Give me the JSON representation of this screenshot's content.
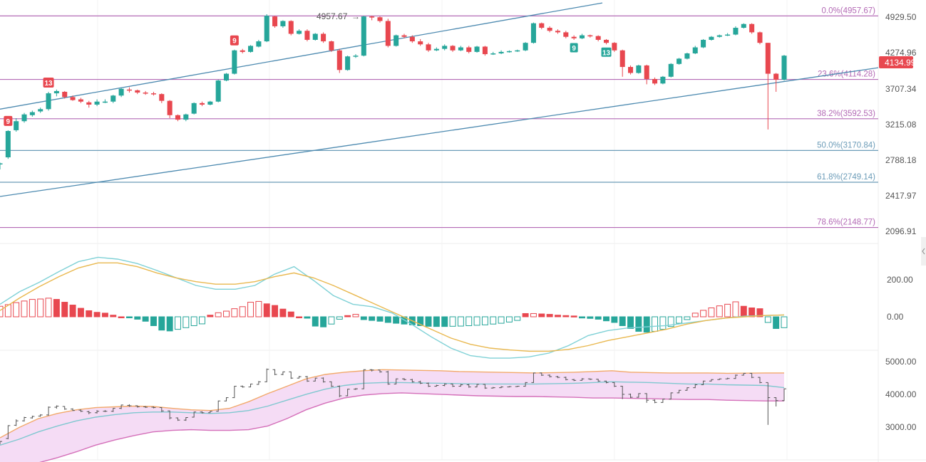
{
  "colors": {
    "up": "#26a69a",
    "down": "#e8474f",
    "fib_purple": "#b36ab5",
    "fib_blue": "#6c9cb8",
    "channel": "#4d8ab0",
    "dif": "#7fd1d6",
    "dea": "#e9b84f",
    "boll_upper": "#f2a96b",
    "boll_mid": "#7fc8d0",
    "boll_lower": "#d46fb9",
    "boll_fill": "#f5dcf5",
    "price_tag_bg": "#e8474f"
  },
  "price_axis": {
    "ticks": [
      "4929.50",
      "4274.96",
      "3707.34",
      "3215.08",
      "2788.18",
      "2417.97",
      "2096.91"
    ]
  },
  "macd_axis": {
    "ticks": [
      "200.00",
      "0.00"
    ]
  },
  "boll_axis": {
    "ticks": [
      "5000.00",
      "4000.00",
      "3000.00"
    ]
  },
  "last_price": "4134.99",
  "high_marker": {
    "label": "4957.67",
    "arrow": "→"
  },
  "fib_levels": [
    {
      "label": "0.0%(4957.67)",
      "price": 4957.67
    },
    {
      "label": "23.6%(4114.28)",
      "price": 4114.28
    },
    {
      "label": "38.2%(3592.53)",
      "price": 3592.53
    },
    {
      "label": "50.0%(3170.84)",
      "price": 3170.84
    },
    {
      "label": "61.8%(2749.14)",
      "price": 2749.14
    },
    {
      "label": "78.6%(2148.77)",
      "price": 2148.77
    }
  ],
  "td_markers": [
    {
      "label": "9",
      "candle": 1,
      "pos": "above",
      "kind": "down"
    },
    {
      "label": "13",
      "candle": 6,
      "pos": "above",
      "kind": "down"
    },
    {
      "label": "9",
      "candle": 29,
      "pos": "above",
      "kind": "down"
    },
    {
      "label": "9",
      "candle": 71,
      "pos": "below",
      "kind": "up"
    },
    {
      "label": "13",
      "candle": 75,
      "pos": "below",
      "kind": "up"
    }
  ],
  "chart_data": {
    "type": "candlestick",
    "title": "",
    "price_range": [
      2050,
      5150
    ],
    "candles": [
      [
        3000,
        3000,
        2920,
        3010
      ],
      [
        3080,
        3430,
        3060,
        3440
      ],
      [
        3440,
        3560,
        3420,
        3600
      ],
      [
        3560,
        3650,
        3540,
        3670
      ],
      [
        3640,
        3680,
        3620,
        3700
      ],
      [
        3690,
        3720,
        3670,
        3740
      ],
      [
        3720,
        3930,
        3700,
        3950
      ],
      [
        3930,
        3960,
        3890,
        3980
      ],
      [
        3950,
        3880,
        3860,
        3960
      ],
      [
        3880,
        3840,
        3830,
        3900
      ],
      [
        3850,
        3820,
        3800,
        3870
      ],
      [
        3810,
        3780,
        3740,
        3830
      ],
      [
        3780,
        3820,
        3760,
        3850
      ],
      [
        3820,
        3820,
        3800,
        3850
      ],
      [
        3820,
        3900,
        3800,
        3910
      ],
      [
        3900,
        3990,
        3880,
        4000
      ],
      [
        3980,
        3970,
        3940,
        4010
      ],
      [
        3970,
        3940,
        3920,
        3980
      ],
      [
        3940,
        3930,
        3910,
        3960
      ],
      [
        3930,
        3920,
        3900,
        3950
      ],
      [
        3920,
        3830,
        3800,
        3930
      ],
      [
        3830,
        3640,
        3600,
        3840
      ],
      [
        3640,
        3580,
        3560,
        3650
      ],
      [
        3580,
        3650,
        3560,
        3660
      ],
      [
        3660,
        3800,
        3650,
        3810
      ],
      [
        3800,
        3780,
        3760,
        3820
      ],
      [
        3780,
        3820,
        3770,
        3830
      ],
      [
        3820,
        4100,
        3810,
        4110
      ],
      [
        4100,
        4190,
        4090,
        4200
      ],
      [
        4190,
        4500,
        4180,
        4510
      ],
      [
        4500,
        4480,
        4460,
        4520
      ],
      [
        4480,
        4560,
        4470,
        4570
      ],
      [
        4550,
        4620,
        4540,
        4640
      ],
      [
        4620,
        4960,
        4610,
        4980
      ],
      [
        4950,
        4820,
        4800,
        4960
      ],
      [
        4820,
        4890,
        4800,
        4900
      ],
      [
        4890,
        4720,
        4700,
        4900
      ],
      [
        4720,
        4760,
        4710,
        4780
      ],
      [
        4760,
        4640,
        4620,
        4780
      ],
      [
        4640,
        4720,
        4630,
        4730
      ],
      [
        4720,
        4620,
        4600,
        4740
      ],
      [
        4620,
        4500,
        4480,
        4630
      ],
      [
        4500,
        4240,
        4200,
        4520
      ],
      [
        4240,
        4420,
        4230,
        4430
      ],
      [
        4420,
        4430,
        4400,
        4450
      ],
      [
        4430,
        4950,
        4420,
        4960
      ],
      [
        4950,
        4940,
        4900,
        4960
      ],
      [
        4940,
        4890,
        4870,
        4950
      ],
      [
        4890,
        4560,
        4540,
        4920
      ],
      [
        4560,
        4700,
        4550,
        4710
      ],
      [
        4700,
        4680,
        4660,
        4720
      ],
      [
        4680,
        4620,
        4600,
        4700
      ],
      [
        4620,
        4580,
        4560,
        4650
      ],
      [
        4580,
        4500,
        4480,
        4600
      ],
      [
        4500,
        4520,
        4490,
        4540
      ],
      [
        4520,
        4560,
        4500,
        4580
      ],
      [
        4560,
        4500,
        4480,
        4570
      ],
      [
        4500,
        4540,
        4490,
        4560
      ],
      [
        4540,
        4480,
        4460,
        4560
      ],
      [
        4480,
        4550,
        4470,
        4560
      ],
      [
        4550,
        4450,
        4430,
        4560
      ],
      [
        4450,
        4460,
        4440,
        4480
      ],
      [
        4460,
        4480,
        4450,
        4500
      ],
      [
        4480,
        4490,
        4470,
        4500
      ],
      [
        4490,
        4500,
        4480,
        4510
      ],
      [
        4500,
        4600,
        4490,
        4610
      ],
      [
        4600,
        4860,
        4590,
        4870
      ],
      [
        4860,
        4800,
        4780,
        4870
      ],
      [
        4800,
        4760,
        4740,
        4820
      ],
      [
        4760,
        4740,
        4720,
        4780
      ],
      [
        4740,
        4680,
        4660,
        4760
      ],
      [
        4680,
        4660,
        4640,
        4700
      ],
      [
        4660,
        4700,
        4650,
        4720
      ],
      [
        4700,
        4690,
        4670,
        4710
      ],
      [
        4690,
        4640,
        4620,
        4700
      ],
      [
        4640,
        4600,
        4580,
        4650
      ],
      [
        4600,
        4500,
        4480,
        4610
      ],
      [
        4500,
        4280,
        4150,
        4510
      ],
      [
        4280,
        4200,
        4180,
        4300
      ],
      [
        4200,
        4300,
        4190,
        4310
      ],
      [
        4300,
        4120,
        4050,
        4310
      ],
      [
        4120,
        4060,
        4040,
        4140
      ],
      [
        4060,
        4150,
        4050,
        4160
      ],
      [
        4150,
        4320,
        4140,
        4330
      ],
      [
        4320,
        4390,
        4310,
        4400
      ],
      [
        4390,
        4460,
        4380,
        4470
      ],
      [
        4460,
        4540,
        4450,
        4560
      ],
      [
        4540,
        4640,
        4530,
        4650
      ],
      [
        4640,
        4680,
        4630,
        4690
      ],
      [
        4680,
        4700,
        4670,
        4710
      ],
      [
        4700,
        4710,
        4690,
        4730
      ],
      [
        4710,
        4800,
        4700,
        4820
      ],
      [
        4800,
        4850,
        4790,
        4860
      ],
      [
        4850,
        4740,
        4720,
        4860
      ],
      [
        4740,
        4600,
        4580,
        4750
      ],
      [
        4600,
        4190,
        3450,
        4600
      ],
      [
        4190,
        4110,
        3950,
        4200
      ],
      [
        4110,
        4430,
        4100,
        4440
      ]
    ],
    "fib_channel": "upward parallel channel",
    "macd": {
      "histogram": [
        52,
        60,
        70,
        78,
        86,
        88,
        92,
        86,
        72,
        58,
        42,
        30,
        22,
        18,
        8,
        0,
        -3,
        -12,
        -22,
        -44,
        -66,
        -70,
        -62,
        -54,
        -44,
        -35,
        8,
        20,
        28,
        40,
        50,
        72,
        76,
        64,
        56,
        38,
        24,
        0,
        -7,
        -46,
        -50,
        -36,
        -12,
        6,
        12,
        -14,
        -18,
        -22,
        -28,
        -32,
        -36,
        -40,
        -44,
        -47,
        -48,
        -48,
        -47,
        -46,
        -44,
        -42,
        -40,
        -36,
        -32,
        -26,
        -18,
        16,
        16,
        14,
        12,
        8,
        6,
        4,
        -6,
        -8,
        -12,
        -20,
        -28,
        -44,
        -58,
        -72,
        -76,
        -72,
        -62,
        -48,
        -32,
        -14,
        18,
        32,
        44,
        54,
        62,
        74,
        52,
        44,
        40,
        -28,
        -58,
        -54
      ],
      "dif": [
        0.2,
        0.4,
        0.55,
        0.72,
        0.88,
        0.95,
        0.92,
        0.85,
        0.74,
        0.62,
        0.5,
        0.44,
        0.44,
        0.5,
        0.68,
        0.8,
        0.58,
        0.34,
        0.2,
        0.16,
        0.06,
        -0.12,
        -0.32,
        -0.5,
        -0.62,
        -0.66,
        -0.66,
        -0.64,
        -0.58,
        -0.46,
        -0.3,
        -0.22,
        -0.18,
        -0.16,
        -0.14,
        -0.1,
        -0.06,
        -0.02,
        0.01,
        0.02,
        0.03
      ],
      "dea": [
        0.1,
        0.3,
        0.48,
        0.64,
        0.78,
        0.86,
        0.86,
        0.8,
        0.7,
        0.62,
        0.56,
        0.52,
        0.52,
        0.56,
        0.64,
        0.7,
        0.62,
        0.5,
        0.36,
        0.22,
        0.08,
        -0.06,
        -0.2,
        -0.34,
        -0.44,
        -0.5,
        -0.53,
        -0.55,
        -0.55,
        -0.52,
        -0.46,
        -0.38,
        -0.32,
        -0.26,
        -0.2,
        -0.12,
        -0.06,
        -0.02,
        0.0,
        0.02,
        0.03
      ],
      "range": [
        -150,
        350
      ]
    },
    "bollinger": {
      "range": [
        2500,
        5400
      ],
      "upper": [
        3100,
        3380,
        3620,
        3760,
        3860,
        3920,
        3940,
        3960,
        3950,
        3900,
        3860,
        3840,
        3900,
        4080,
        4300,
        4500,
        4700,
        4820,
        4880,
        4920,
        4950,
        4940,
        4930,
        4920,
        4900,
        4890,
        4880,
        4870,
        4860,
        4870,
        4880,
        4900,
        4920,
        4880,
        4870,
        4860,
        4860,
        4860,
        4850,
        4855,
        4860,
        4860
      ],
      "mid": [
        2900,
        3060,
        3260,
        3420,
        3560,
        3660,
        3730,
        3780,
        3800,
        3800,
        3780,
        3760,
        3780,
        3840,
        3960,
        4120,
        4280,
        4420,
        4520,
        4580,
        4600,
        4600,
        4590,
        4580,
        4570,
        4560,
        4560,
        4560,
        4560,
        4570,
        4580,
        4600,
        4620,
        4610,
        4600,
        4580,
        4560,
        4560,
        4540,
        4530,
        4520,
        4460
      ],
      "lower": [
        2300,
        2340,
        2420,
        2560,
        2720,
        2900,
        3040,
        3160,
        3260,
        3300,
        3320,
        3300,
        3300,
        3320,
        3420,
        3620,
        3860,
        4040,
        4180,
        4260,
        4300,
        4320,
        4300,
        4280,
        4260,
        4240,
        4230,
        4220,
        4220,
        4210,
        4200,
        4180,
        4180,
        4170,
        4160,
        4150,
        4140,
        4140,
        4120,
        4110,
        4100,
        4100
      ]
    }
  }
}
